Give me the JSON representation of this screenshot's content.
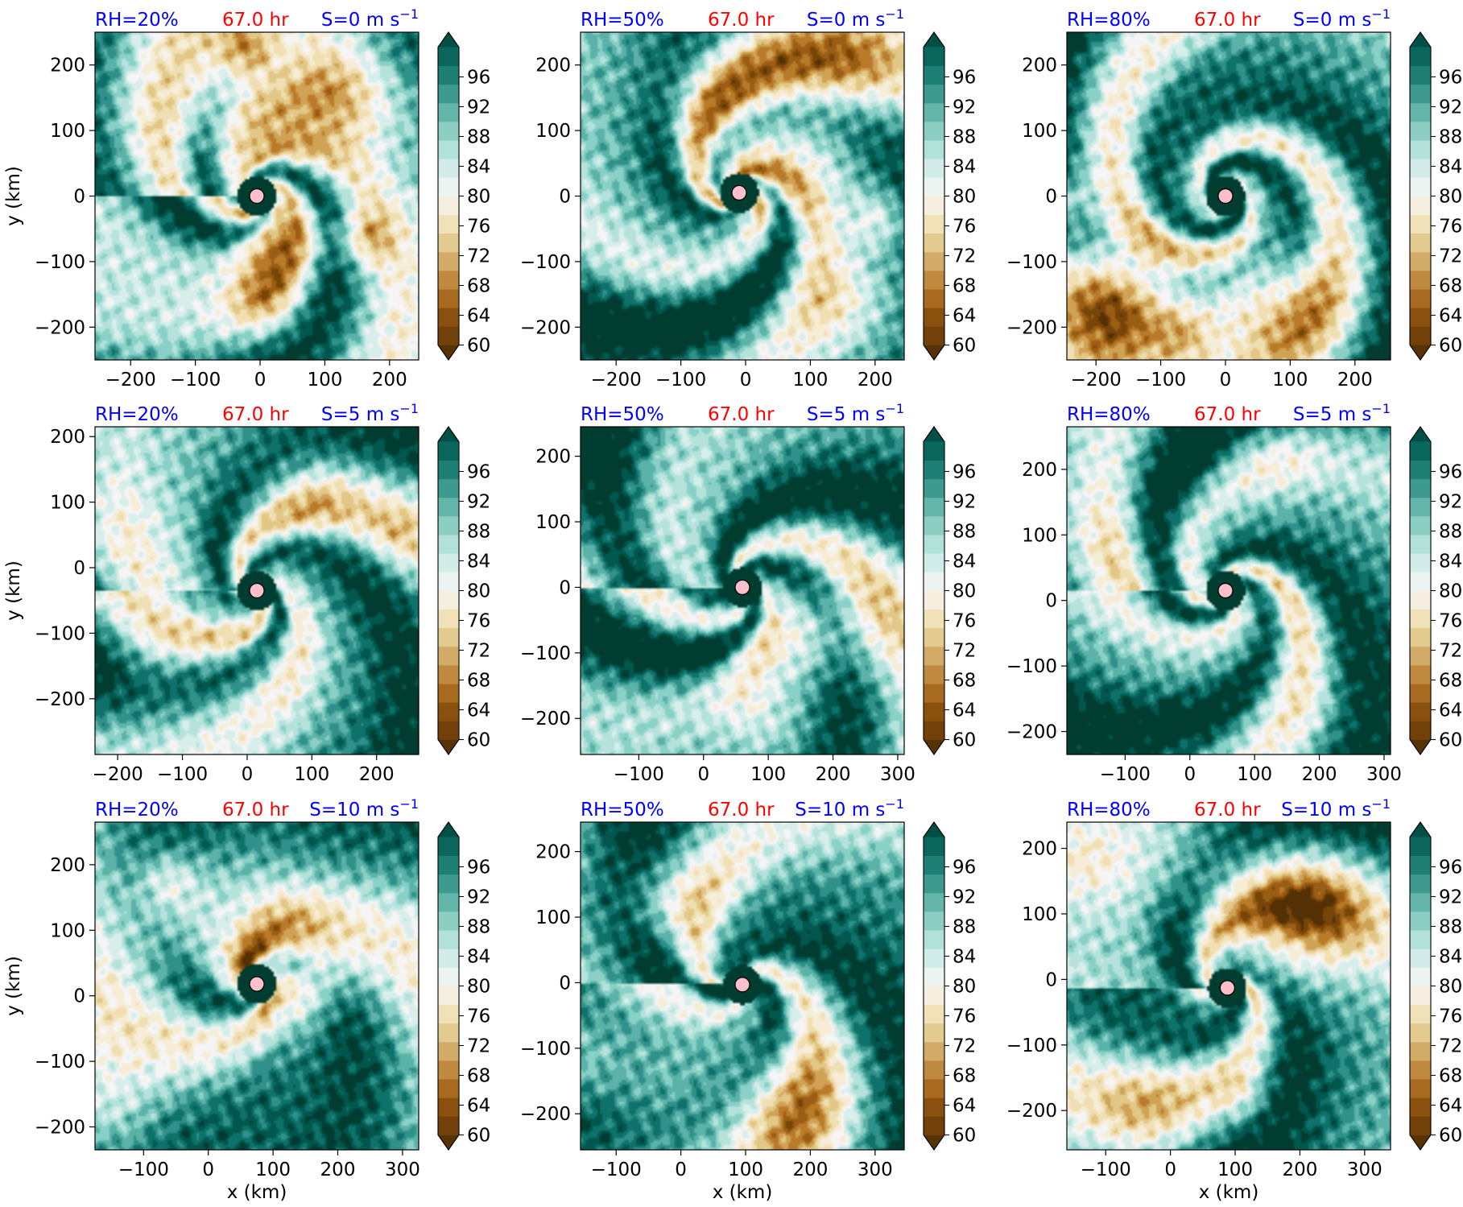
{
  "colors": {
    "rh_label": "#0000ff",
    "time_label": "#ff0000",
    "shear_label": "#0000ff",
    "center_marker": "#ffc0cb",
    "colormap": "BrBG"
  },
  "chart_data": [
    {
      "type": "heatmap",
      "panel": "r0c0",
      "rh_label": "RH=20%",
      "time_label": "67.0 hr",
      "shear_label": "S=0 m s",
      "shear_exp": "−1",
      "xlim": [
        -255,
        245
      ],
      "ylim": [
        -250,
        250
      ],
      "xticks": [
        -200,
        -100,
        0,
        100,
        200
      ],
      "yticks": [
        -200,
        -100,
        0,
        100,
        200
      ],
      "xlabel": "",
      "ylabel": "y (km)",
      "center": [
        -5,
        0
      ],
      "dry": 0.45,
      "arms": 2.6,
      "tight": 0.75,
      "seed": 1
    },
    {
      "type": "heatmap",
      "panel": "r0c1",
      "rh_label": "RH=50%",
      "time_label": "67.0 hr",
      "shear_label": "S=0 m s",
      "shear_exp": "−1",
      "xlim": [
        -255,
        245
      ],
      "ylim": [
        -250,
        250
      ],
      "xticks": [
        -200,
        -100,
        0,
        100,
        200
      ],
      "yticks": [
        -200,
        -100,
        0,
        100,
        200
      ],
      "xlabel": "",
      "ylabel": "",
      "center": [
        -10,
        5
      ],
      "dry": 0.3,
      "arms": 3.0,
      "tight": 0.8,
      "seed": 2
    },
    {
      "type": "heatmap",
      "panel": "r0c2",
      "rh_label": "RH=80%",
      "time_label": "67.0 hr",
      "shear_label": "S=0 m s",
      "shear_exp": "−1",
      "xlim": [
        -245,
        255
      ],
      "ylim": [
        -250,
        250
      ],
      "xticks": [
        -200,
        -100,
        0,
        100,
        200
      ],
      "yticks": [
        -200,
        -100,
        0,
        100,
        200
      ],
      "xlabel": "",
      "ylabel": "",
      "center": [
        0,
        0
      ],
      "dry": 0.35,
      "arms": 2.0,
      "tight": 1.0,
      "seed": 3
    },
    {
      "type": "heatmap",
      "panel": "r1c0",
      "rh_label": "RH=20%",
      "time_label": "67.0 hr",
      "shear_label": "S=5 m s",
      "shear_exp": "−1",
      "xlim": [
        -235,
        265
      ],
      "ylim": [
        -285,
        215
      ],
      "xticks": [
        -200,
        -100,
        0,
        100,
        200
      ],
      "yticks": [
        -200,
        -100,
        0,
        100,
        200
      ],
      "xlabel": "",
      "ylabel": "y (km)",
      "center": [
        15,
        -35
      ],
      "dry": 0.2,
      "arms": 3.2,
      "tight": 0.7,
      "seed": 4
    },
    {
      "type": "heatmap",
      "panel": "r1c1",
      "rh_label": "RH=50%",
      "time_label": "67.0 hr",
      "shear_label": "S=5 m s",
      "shear_exp": "−1",
      "xlim": [
        -190,
        310
      ],
      "ylim": [
        -255,
        245
      ],
      "xticks": [
        -100,
        0,
        100,
        200,
        300
      ],
      "yticks": [
        -200,
        -100,
        0,
        100,
        200
      ],
      "xlabel": "",
      "ylabel": "",
      "center": [
        60,
        0
      ],
      "dry": 0.18,
      "arms": 3.5,
      "tight": 0.7,
      "seed": 5
    },
    {
      "type": "heatmap",
      "panel": "r1c2",
      "rh_label": "RH=80%",
      "time_label": "67.0 hr",
      "shear_label": "S=5 m s",
      "shear_exp": "−1",
      "xlim": [
        -190,
        310
      ],
      "ylim": [
        -235,
        265
      ],
      "xticks": [
        -100,
        0,
        100,
        200,
        300
      ],
      "yticks": [
        -200,
        -100,
        0,
        100,
        200
      ],
      "xlabel": "",
      "ylabel": "",
      "center": [
        55,
        15
      ],
      "dry": 0.12,
      "arms": 3.2,
      "tight": 0.8,
      "seed": 6
    },
    {
      "type": "heatmap",
      "panel": "r2c0",
      "rh_label": "RH=20%",
      "time_label": "67.0 hr",
      "shear_label": "S=10 m s",
      "shear_exp": "−1",
      "xlim": [
        -175,
        325
      ],
      "ylim": [
        -235,
        265
      ],
      "xticks": [
        -100,
        0,
        100,
        200,
        300
      ],
      "yticks": [
        -200,
        -100,
        0,
        100,
        200
      ],
      "xlabel": "x (km)",
      "ylabel": "y (km)",
      "center": [
        75,
        18
      ],
      "dry": 0.3,
      "arms": 2.0,
      "tight": 0.45,
      "seed": 7
    },
    {
      "type": "heatmap",
      "panel": "r2c1",
      "rh_label": "RH=50%",
      "time_label": "67.0 hr",
      "shear_label": "S=10 m s",
      "shear_exp": "−1",
      "xlim": [
        -155,
        345
      ],
      "ylim": [
        -255,
        245
      ],
      "xticks": [
        -100,
        0,
        100,
        200,
        300
      ],
      "yticks": [
        -200,
        -100,
        0,
        100,
        200
      ],
      "xlabel": "x (km)",
      "ylabel": "",
      "center": [
        95,
        -3
      ],
      "dry": 0.22,
      "arms": 2.6,
      "tight": 0.55,
      "seed": 8
    },
    {
      "type": "heatmap",
      "panel": "r2c2",
      "rh_label": "RH=80%",
      "time_label": "67.0 hr",
      "shear_label": "S=10 m s",
      "shear_exp": "−1",
      "xlim": [
        -160,
        340
      ],
      "ylim": [
        -260,
        240
      ],
      "xticks": [
        -100,
        0,
        100,
        200,
        300
      ],
      "yticks": [
        -200,
        -100,
        0,
        100,
        200
      ],
      "xlabel": "x (km)",
      "ylabel": "",
      "center": [
        88,
        -13
      ],
      "dry": 0.25,
      "arms": 2.4,
      "tight": 0.6,
      "seed": 9
    }
  ],
  "colorbar": {
    "vmin": 60,
    "vmax": 100,
    "step": 2.5,
    "tick_labels": [
      "60",
      "64",
      "68",
      "72",
      "76",
      "80",
      "84",
      "88",
      "92",
      "96"
    ],
    "ticks": [
      60,
      64,
      68,
      72,
      76,
      80,
      84,
      88,
      92,
      96
    ],
    "extend": "both"
  }
}
